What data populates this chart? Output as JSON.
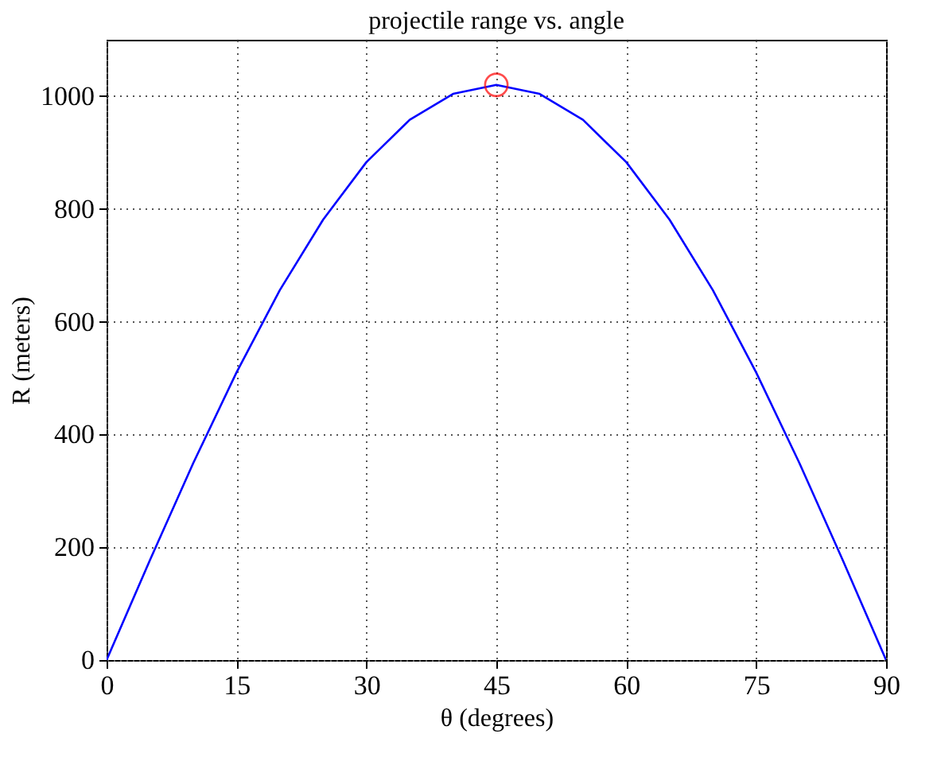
{
  "chart_data": {
    "type": "line",
    "title": "projectile range vs. angle",
    "xlabel": "θ  (degrees)",
    "ylabel": "R  (meters)",
    "xlim": [
      0,
      90
    ],
    "xticks": [
      0,
      15,
      30,
      45,
      60,
      75,
      90
    ],
    "ylim": [
      0,
      1100
    ],
    "yticks": [
      0,
      200,
      400,
      600,
      800,
      1000
    ],
    "grid": true,
    "series": [
      {
        "color": "#0000ff",
        "x": [
          0,
          5,
          10,
          15,
          20,
          25,
          30,
          35,
          40,
          45,
          50,
          55,
          60,
          65,
          70,
          75,
          80,
          85,
          90
        ],
        "values": [
          0,
          177,
          349,
          510,
          656,
          781,
          883,
          958,
          1004,
          1020,
          1004,
          958,
          883,
          781,
          656,
          510,
          349,
          177,
          0
        ]
      },
      {
        "type": "scatter",
        "color": "#ff0000",
        "marker": "circle",
        "x": [
          45
        ],
        "values": [
          1020
        ]
      }
    ]
  }
}
